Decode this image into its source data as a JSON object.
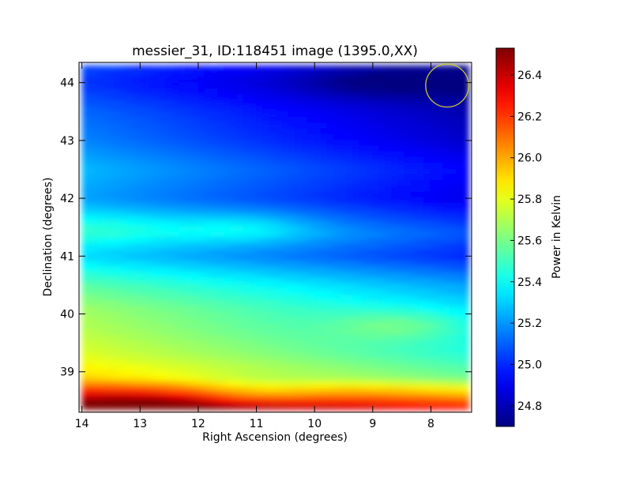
{
  "chart_data": {
    "type": "heatmap",
    "title": "messier_31, ID:118451 image (1395.0,XX)",
    "xlabel": "Right Ascension (degrees)",
    "ylabel": "Declination (degrees)",
    "xlim": [
      14.05,
      7.3
    ],
    "ylim": [
      38.3,
      44.35
    ],
    "x_ticks": [
      14,
      13,
      12,
      11,
      10,
      9,
      8
    ],
    "y_ticks": [
      39,
      40,
      41,
      42,
      43,
      44
    ],
    "x_tick_labels": [
      "14",
      "13",
      "12",
      "11",
      "10",
      "9",
      "8"
    ],
    "y_tick_labels": [
      "39",
      "40",
      "41",
      "42",
      "43",
      "44"
    ],
    "colormap": "jet",
    "colorbar": {
      "label": "Power in Kelvin",
      "range": [
        24.7,
        26.53
      ],
      "ticks": [
        24.8,
        25.0,
        25.2,
        25.4,
        25.6,
        25.8,
        26.0,
        26.2,
        26.4
      ],
      "tick_labels": [
        "24.8",
        "25.0",
        "25.2",
        "25.4",
        "25.6",
        "25.8",
        "26.0",
        "26.2",
        "26.4"
      ]
    },
    "map_extent": {
      "ra": [
        14.0,
        7.35
      ],
      "dec": [
        38.35,
        44.3
      ]
    },
    "dec_profile": [
      {
        "dec": 38.35,
        "kelvin": 26.5
      },
      {
        "dec": 38.6,
        "kelvin": 26.15
      },
      {
        "dec": 38.9,
        "kelvin": 25.75
      },
      {
        "dec": 39.3,
        "kelvin": 25.62
      },
      {
        "dec": 39.7,
        "kelvin": 25.55
      },
      {
        "dec": 40.1,
        "kelvin": 25.5
      },
      {
        "dec": 40.5,
        "kelvin": 25.38
      },
      {
        "dec": 41.0,
        "kelvin": 25.15
      },
      {
        "dec": 41.4,
        "kelvin": 25.25
      },
      {
        "dec": 42.0,
        "kelvin": 25.05
      },
      {
        "dec": 42.5,
        "kelvin": 25.1
      },
      {
        "dec": 43.0,
        "kelvin": 25.0
      },
      {
        "dec": 43.5,
        "kelvin": 24.95
      },
      {
        "dec": 44.0,
        "kelvin": 24.85
      },
      {
        "dec": 44.3,
        "kelvin": 24.9
      }
    ],
    "ra_trend_kelvin_per_degree": 0.05,
    "features": [
      {
        "ra": 12.8,
        "dec": 38.45,
        "kelvin": 26.5
      },
      {
        "ra": 11.0,
        "dec": 38.65,
        "kelvin": 25.95
      },
      {
        "ra": 8.5,
        "dec": 39.8,
        "kelvin": 25.7
      },
      {
        "ra": 11.2,
        "dec": 41.5,
        "kelvin": 25.35
      },
      {
        "ra": 13.5,
        "dec": 41.5,
        "kelvin": 25.3
      },
      {
        "ra": 9.0,
        "dec": 44.0,
        "kelvin": 24.75
      }
    ],
    "marker": {
      "shape": "circle",
      "ra": 7.72,
      "dec": 43.95,
      "radius_deg": 0.37,
      "color": "#c8c83a"
    }
  }
}
